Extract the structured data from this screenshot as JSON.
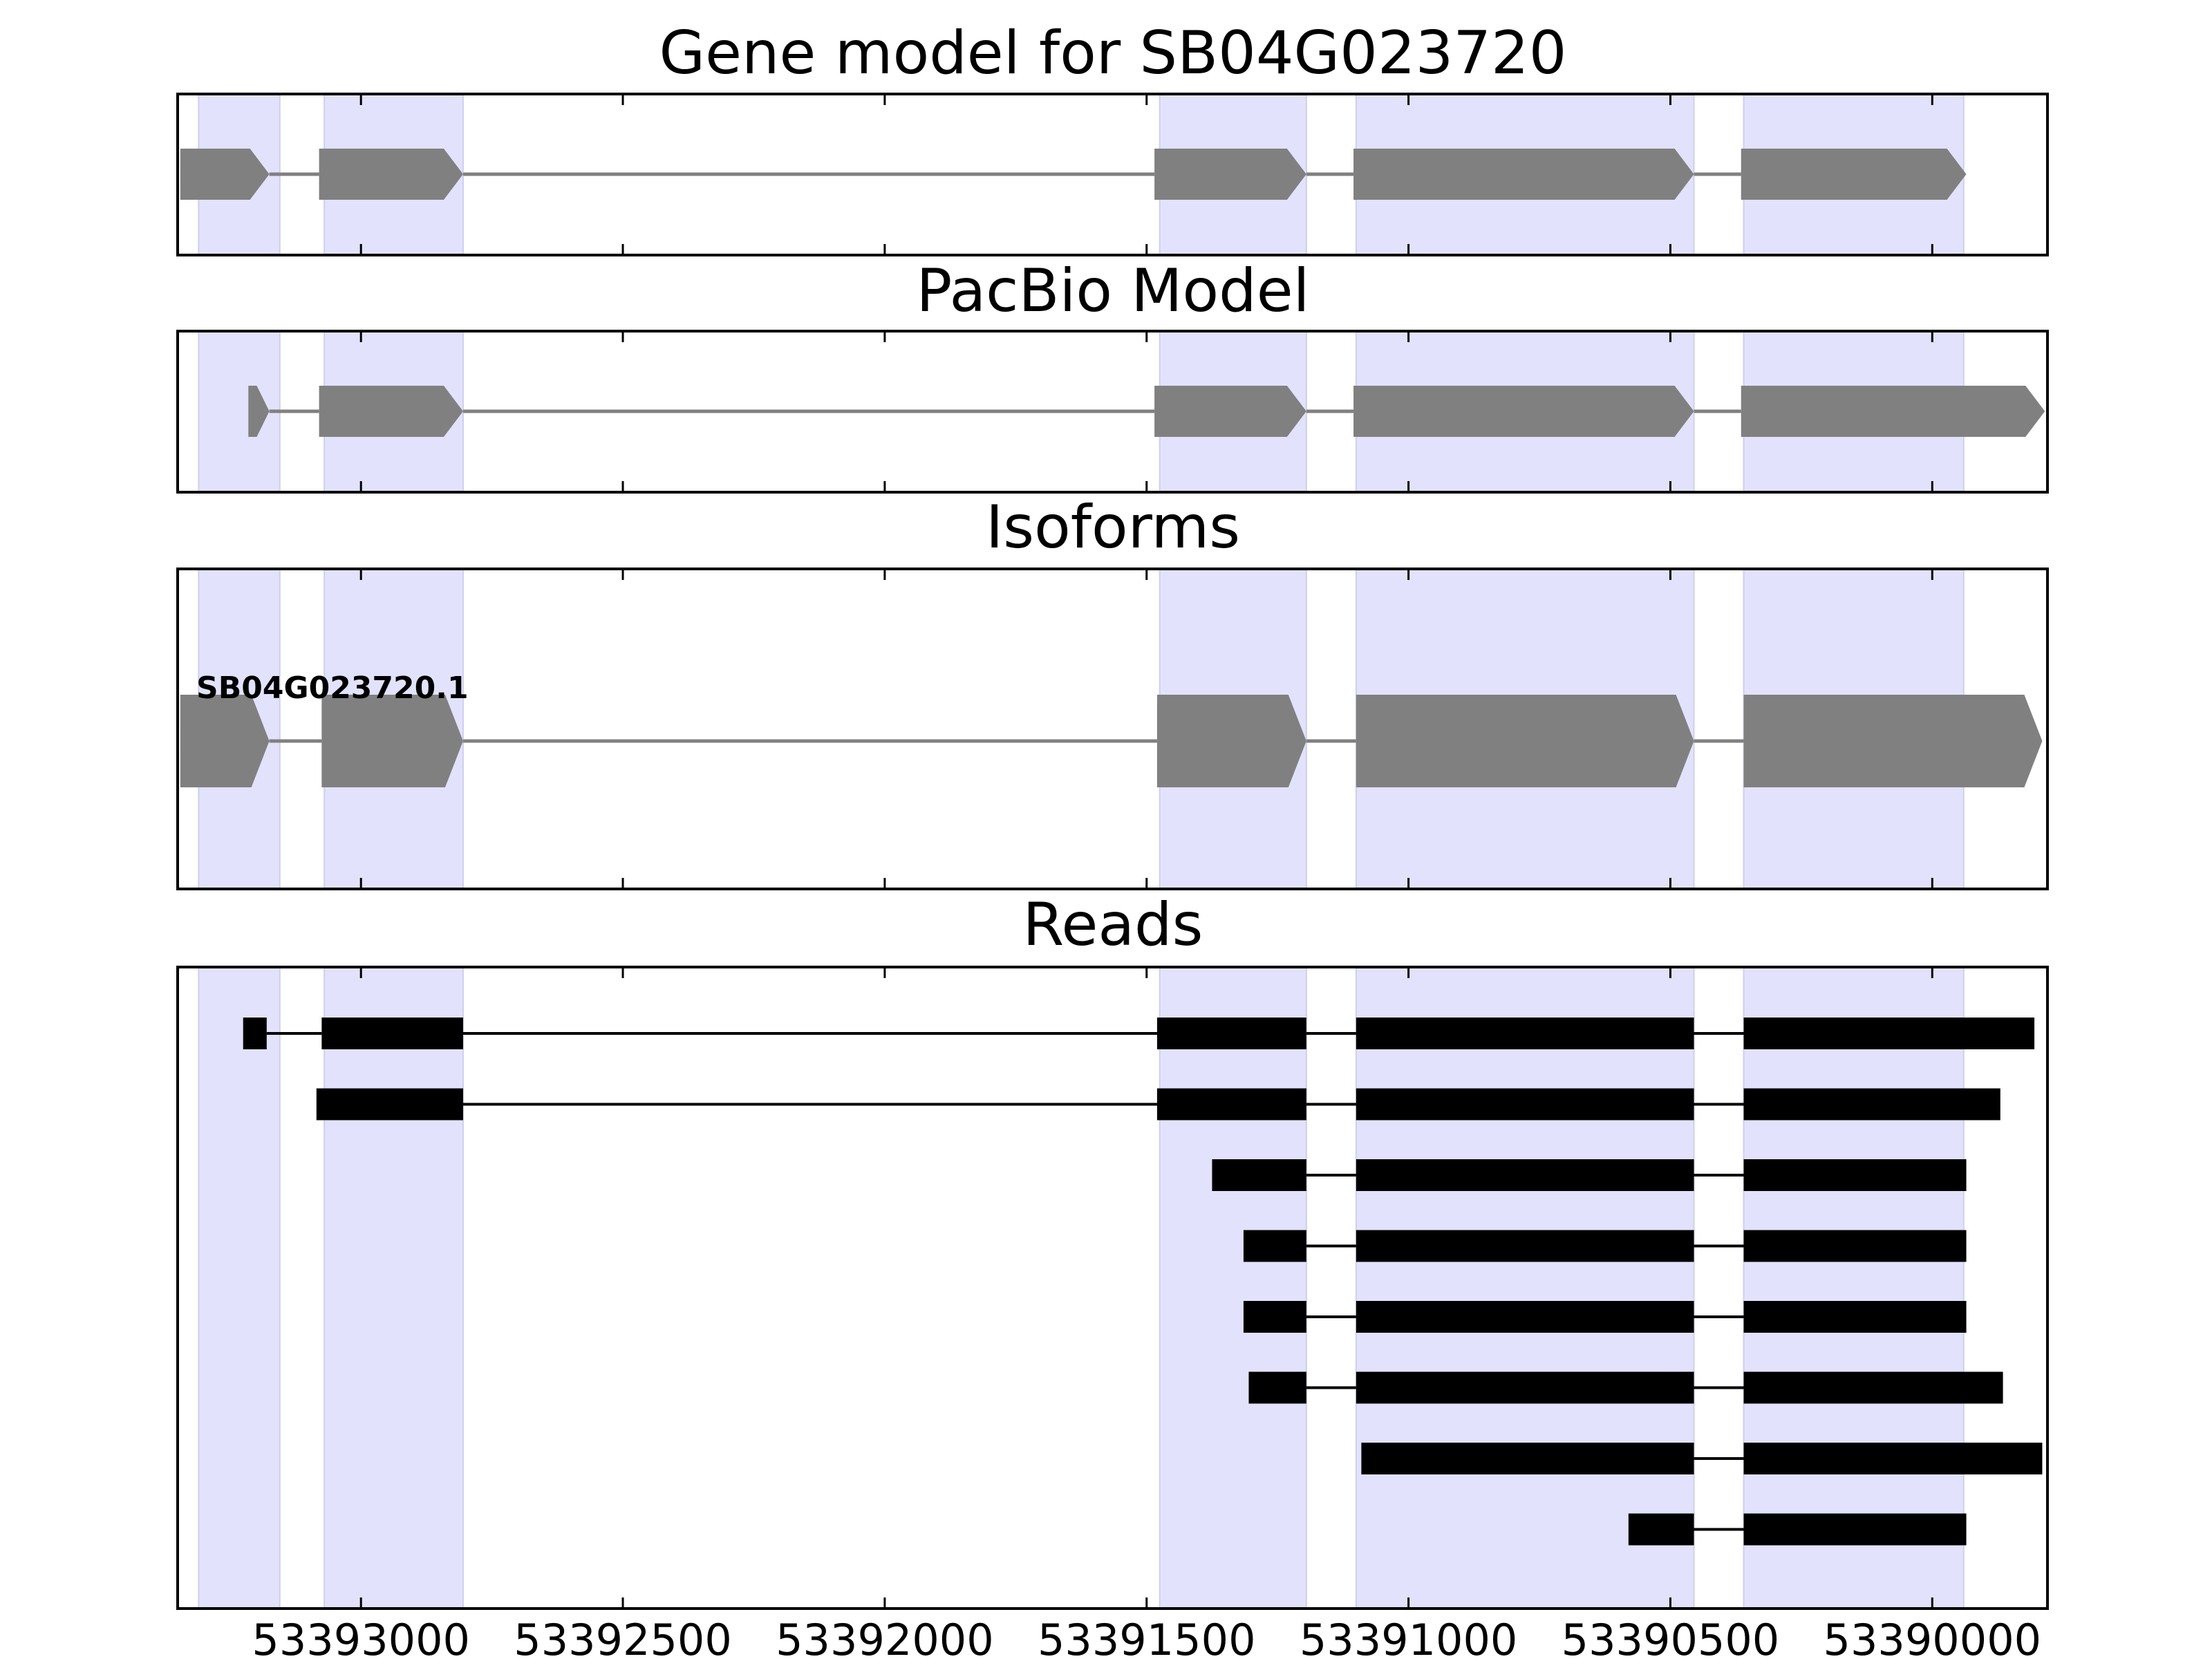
{
  "figure": {
    "titles": [
      "Gene model for SB04G023720",
      "PacBio Model",
      "Isoforms",
      "Reads"
    ]
  },
  "colors": {
    "exon_band": "#e2e2fc",
    "exon_band_edge": "#cfcfee",
    "model_exon": "#808080",
    "read": "#000000",
    "frame": "#000000"
  },
  "chart_data": {
    "type": "gene-structure",
    "strand": "minus",
    "x_axis": {
      "range": [
        53393350,
        53389780
      ],
      "ticks": [
        53393000,
        53392500,
        53392000,
        53391500,
        53391000,
        53390500,
        53390000
      ],
      "tick_labels": [
        "53393000",
        "53392500",
        "53392000",
        "53391500",
        "53391000",
        "53390500",
        "53390000"
      ]
    },
    "exon_bands": [
      [
        53393310,
        53393155
      ],
      [
        53393070,
        53392805
      ],
      [
        53391475,
        53391195
      ],
      [
        53391100,
        53390455
      ],
      [
        53390360,
        53389940
      ]
    ],
    "gene_model": {
      "exons": [
        [
          53393345,
          53393175
        ],
        [
          53393080,
          53392805
        ],
        [
          53391485,
          53391195
        ],
        [
          53391105,
          53390455
        ],
        [
          53390365,
          53389935
        ]
      ]
    },
    "pacbio_model": {
      "exons": [
        [
          53393215,
          53393175
        ],
        [
          53393080,
          53392805
        ],
        [
          53391485,
          53391195
        ],
        [
          53391105,
          53390455
        ],
        [
          53390365,
          53389785
        ]
      ]
    },
    "isoforms": [
      {
        "name": "SB04G023720.1",
        "exons": [
          [
            53393345,
            53393175
          ],
          [
            53393075,
            53392805
          ],
          [
            53391480,
            53391195
          ],
          [
            53391100,
            53390455
          ],
          [
            53390360,
            53389790
          ]
        ]
      }
    ],
    "reads": [
      [
        [
          53393225,
          53393180
        ],
        [
          53393075,
          53392805
        ],
        [
          53391480,
          53391195
        ],
        [
          53391100,
          53390455
        ],
        [
          53390360,
          53389805
        ]
      ],
      [
        [
          53393085,
          53392805
        ],
        [
          53391480,
          53391195
        ],
        [
          53391100,
          53390455
        ],
        [
          53390360,
          53389870
        ]
      ],
      [
        [
          53391375,
          53391195
        ],
        [
          53391100,
          53390455
        ],
        [
          53390360,
          53389935
        ]
      ],
      [
        [
          53391315,
          53391195
        ],
        [
          53391100,
          53390455
        ],
        [
          53390360,
          53389935
        ]
      ],
      [
        [
          53391315,
          53391195
        ],
        [
          53391100,
          53390455
        ],
        [
          53390360,
          53389935
        ]
      ],
      [
        [
          53391305,
          53391195
        ],
        [
          53391100,
          53390455
        ],
        [
          53390360,
          53389865
        ]
      ],
      [
        [
          53391090,
          53390455
        ],
        [
          53390360,
          53389790
        ]
      ],
      [
        [
          53390580,
          53390455
        ],
        [
          53390360,
          53389935
        ]
      ]
    ]
  }
}
